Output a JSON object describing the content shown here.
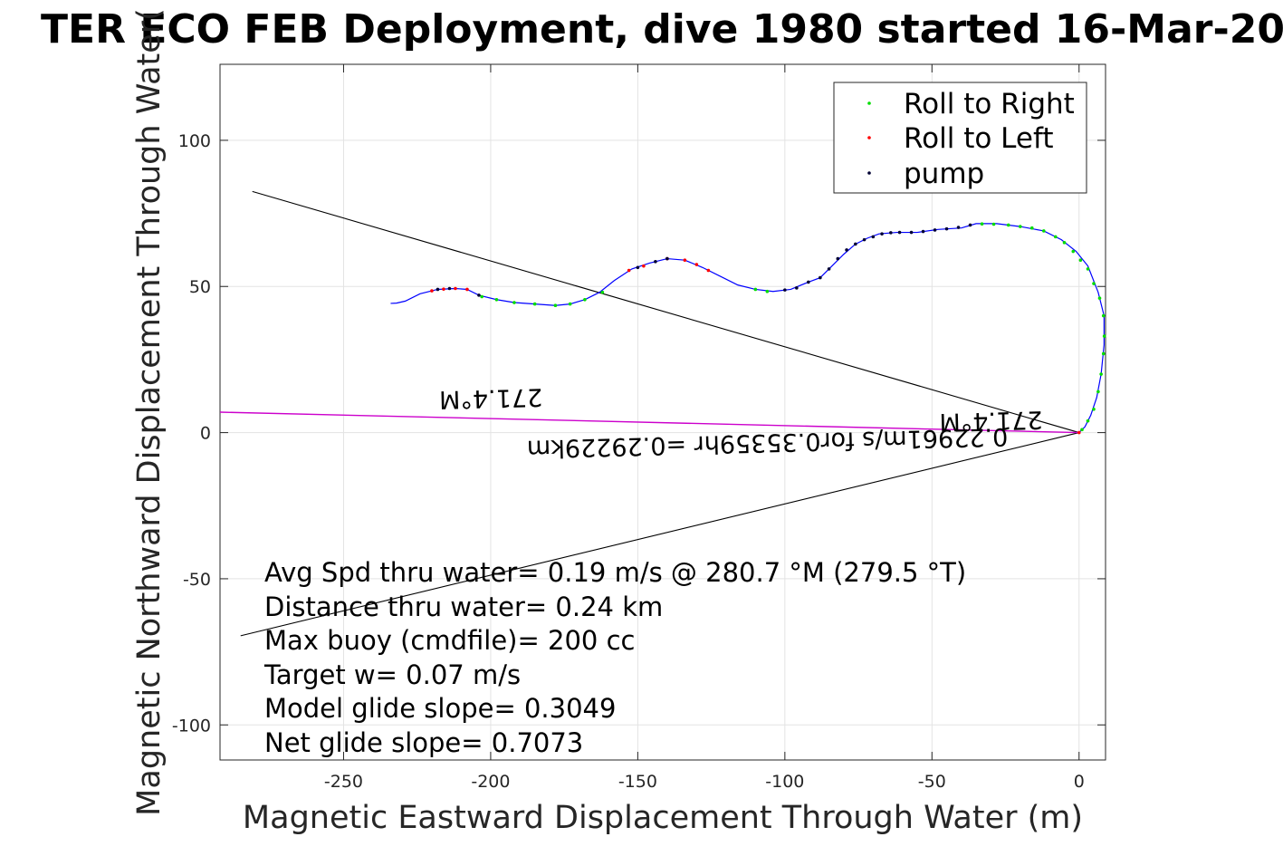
{
  "chart_data": {
    "type": "scatter",
    "title": "TER ECO FEB Deployment, dive 1980 started 16-Mar-20",
    "xlabel": "Magnetic Eastward Displacement Through Water (m)",
    "ylabel": "Magnetic Northward Displacement Through Water(",
    "xlim": [
      -292,
      9
    ],
    "ylim": [
      -112,
      126
    ],
    "xticks": [
      -250,
      -200,
      -150,
      -100,
      -50,
      0
    ],
    "yticks": [
      -100,
      -50,
      0,
      50,
      100
    ],
    "grid": true,
    "legend_position": "top-right",
    "legend": [
      "Roll to Right",
      "Roll to Left",
      "pump"
    ],
    "colors": {
      "track": "#0000ff",
      "roll_right": "#00dd00",
      "roll_left": "#ff0000",
      "pump": "#000033",
      "current_line": "#cc00cc",
      "reference_lines": "#000000",
      "grid": "#e3e3e3"
    },
    "track": [
      [
        0,
        0
      ],
      [
        2,
        2
      ],
      [
        4,
        6
      ],
      [
        6,
        12
      ],
      [
        7.5,
        20
      ],
      [
        8.5,
        30
      ],
      [
        8.5,
        40
      ],
      [
        6.5,
        48
      ],
      [
        3,
        57
      ],
      [
        -1,
        62
      ],
      [
        -6,
        66
      ],
      [
        -12,
        69
      ],
      [
        -20,
        70.5
      ],
      [
        -28,
        71.5
      ],
      [
        -35,
        71.5
      ],
      [
        -40,
        70
      ],
      [
        -48,
        69.5
      ],
      [
        -55,
        68.5
      ],
      [
        -62,
        68.5
      ],
      [
        -68,
        68
      ],
      [
        -72,
        66.5
      ],
      [
        -76,
        64.5
      ],
      [
        -80,
        61
      ],
      [
        -84,
        57
      ],
      [
        -88,
        53
      ],
      [
        -92,
        51.5
      ],
      [
        -98,
        49
      ],
      [
        -104,
        48.3
      ],
      [
        -110,
        49
      ],
      [
        -116,
        50.5
      ],
      [
        -122,
        53.5
      ],
      [
        -128,
        56.5
      ],
      [
        -134,
        59
      ],
      [
        -140,
        59.5
      ],
      [
        -146,
        58
      ],
      [
        -152,
        56
      ],
      [
        -158,
        52
      ],
      [
        -163,
        48
      ],
      [
        -168,
        45.5
      ],
      [
        -173,
        44
      ],
      [
        -178,
        43.5
      ],
      [
        -185,
        44
      ],
      [
        -192,
        44.5
      ],
      [
        -198,
        45.5
      ],
      [
        -204,
        47
      ],
      [
        -208,
        49
      ],
      [
        -212,
        49.3
      ],
      [
        -218,
        49
      ],
      [
        -224,
        47.5
      ],
      [
        -229,
        45
      ],
      [
        -232,
        44.3
      ],
      [
        -234,
        44.2
      ]
    ],
    "roll_right_points": [
      [
        1,
        1
      ],
      [
        3,
        4
      ],
      [
        5,
        8
      ],
      [
        6.5,
        14
      ],
      [
        7.5,
        20
      ],
      [
        8.3,
        27
      ],
      [
        8.6,
        33
      ],
      [
        8.3,
        40
      ],
      [
        7,
        46
      ],
      [
        5,
        51
      ],
      [
        3,
        56
      ],
      [
        0.5,
        59
      ],
      [
        -2,
        62
      ],
      [
        -5,
        65
      ],
      [
        -8,
        67
      ],
      [
        -12,
        69
      ],
      [
        -16,
        70
      ],
      [
        -20,
        70.5
      ],
      [
        -24,
        71
      ],
      [
        -29,
        71.3
      ],
      [
        -33,
        71.4
      ],
      [
        -162,
        48
      ],
      [
        -168,
        45.5
      ],
      [
        -173,
        44
      ],
      [
        -178,
        43.5
      ],
      [
        -185,
        44
      ],
      [
        -192,
        44.5
      ],
      [
        -198,
        45.5
      ],
      [
        -203,
        46.5
      ],
      [
        -106,
        48.3
      ],
      [
        -110,
        49
      ]
    ],
    "roll_left_points": [
      [
        0,
        0
      ],
      [
        -212,
        49.3
      ],
      [
        -216,
        49.1
      ],
      [
        -220,
        48.5
      ],
      [
        -208,
        49
      ],
      [
        -148,
        57
      ],
      [
        -140,
        59.5
      ],
      [
        -134,
        59
      ],
      [
        -130,
        57.5
      ],
      [
        -126,
        55.5
      ],
      [
        -153,
        55.5
      ]
    ],
    "pump_points": [
      [
        -37,
        71
      ],
      [
        -41,
        70.2
      ],
      [
        -45,
        69.7
      ],
      [
        -49,
        69.3
      ],
      [
        -53,
        68.8
      ],
      [
        -57,
        68.5
      ],
      [
        -61,
        68.5
      ],
      [
        -64,
        68.4
      ],
      [
        -67,
        68
      ],
      [
        -70,
        67
      ],
      [
        -73,
        66
      ],
      [
        -76,
        64.5
      ],
      [
        -79,
        62.5
      ],
      [
        -82,
        59.5
      ],
      [
        -85,
        56
      ],
      [
        -88,
        53
      ],
      [
        -92,
        51.5
      ],
      [
        -96,
        49.5
      ],
      [
        -100,
        48.8
      ],
      [
        -140,
        59.5
      ],
      [
        -144,
        58.5
      ],
      [
        -150,
        56.5
      ],
      [
        -214,
        49.3
      ],
      [
        -218,
        49
      ],
      [
        -204,
        47
      ]
    ],
    "reference_lines": [
      {
        "from": [
          0,
          0
        ],
        "to": [
          -281,
          82.5
        ]
      },
      {
        "from": [
          0,
          0
        ],
        "to": [
          -285,
          -69.5
        ]
      }
    ],
    "current_line": {
      "from": [
        0,
        0
      ],
      "to": [
        -292,
        7
      ]
    },
    "rotated_annotations": [
      {
        "text": "271.4°M",
        "at": [
          -200,
          14.5
        ]
      },
      {
        "text": "271.4°M",
        "at": [
          -30,
          6.8
        ]
      },
      {
        "text": "0.22961m/s for0.35359hr =0.29229km",
        "at": [
          -106,
          -0.7
        ]
      }
    ],
    "info_lines": [
      "Avg Spd thru water=  0.19 m/s @ 280.7 °M (279.5 °T)",
      "Distance thru water=  0.24 km",
      "Max buoy (cmdfile)= 200 cc",
      "Target w= 0.07 m/s",
      "Model glide slope= 0.3049",
      "Net glide slope= 0.7073"
    ]
  }
}
